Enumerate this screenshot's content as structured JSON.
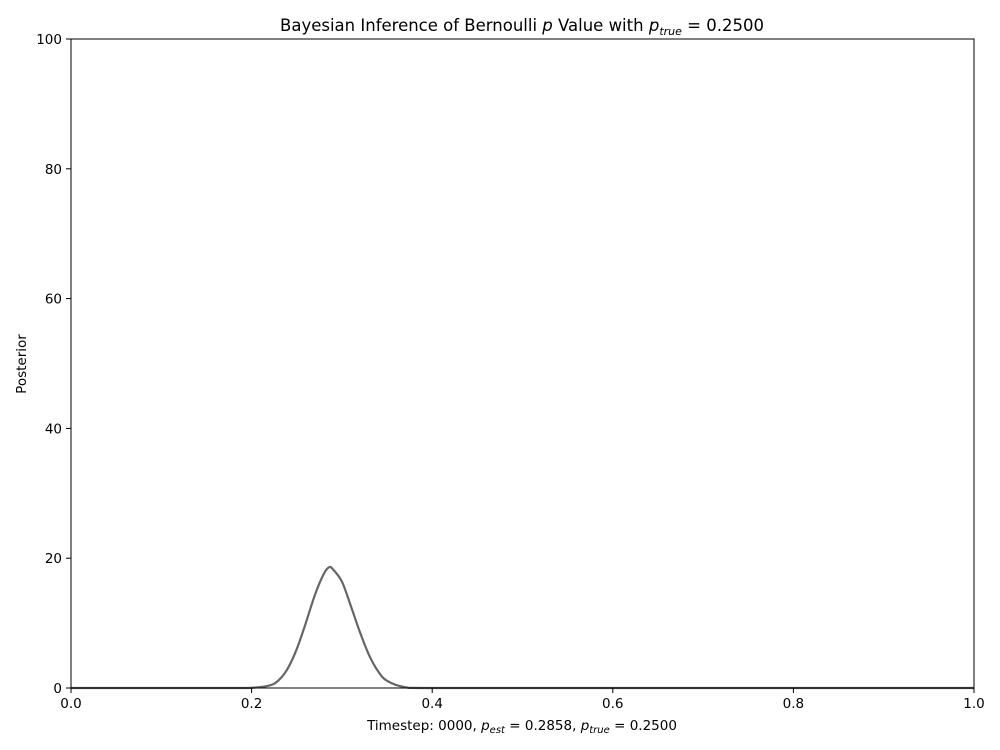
{
  "chart_data": {
    "type": "line",
    "title": {
      "prefix": "Bayesian Inference of Bernoulli ",
      "p_symbol": "p",
      "middle": " Value with ",
      "sub": "true",
      "suffix": " =  0.2500"
    },
    "ylabel": "Posterior",
    "xlabel": {
      "timestep_text": "Timestep: 0000, ",
      "p_symbol": "p",
      "est_sub": "est",
      "est_text": " = 0.2858, ",
      "true_sub": "true",
      "true_text": " = 0.2500"
    },
    "xlim": [
      0.0,
      1.0
    ],
    "ylim": [
      0,
      100
    ],
    "xticks": [
      "0.0",
      "0.2",
      "0.4",
      "0.6",
      "0.8",
      "1.0"
    ],
    "yticks": [
      "0",
      "20",
      "40",
      "60",
      "80",
      "100"
    ],
    "grid": false,
    "line_color": "#666666",
    "series": [
      {
        "x": [
          0.0,
          0.18,
          0.2,
          0.22,
          0.23,
          0.24,
          0.25,
          0.26,
          0.27,
          0.28,
          0.2858,
          0.29,
          0.3,
          0.31,
          0.32,
          0.33,
          0.34,
          0.35,
          0.37,
          0.4,
          0.6,
          0.8,
          1.0
        ],
        "y": [
          0,
          0,
          0.03,
          0.4,
          1.2,
          3.0,
          6.0,
          10.0,
          14.3,
          17.6,
          18.6,
          18.3,
          16.4,
          12.6,
          8.6,
          5.1,
          2.6,
          1.1,
          0.12,
          0,
          0,
          0,
          0
        ]
      }
    ]
  }
}
